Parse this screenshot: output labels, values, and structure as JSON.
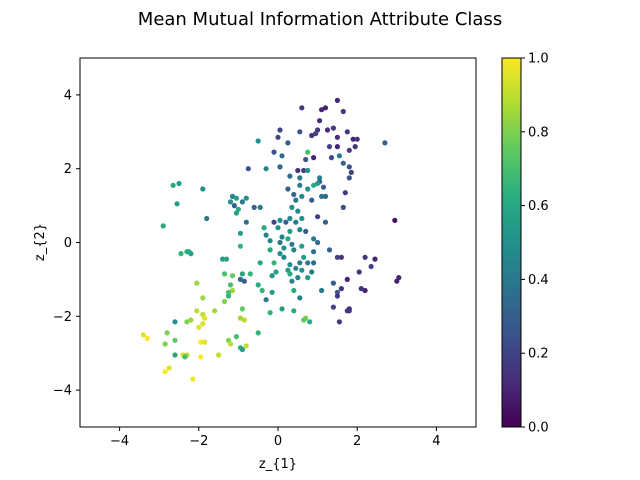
{
  "figure": {
    "title": "Mean Mutual Information Attribute Class"
  },
  "chart_data": {
    "type": "scatter",
    "title": "Mean Mutual Information Attribute Class",
    "xlabel": "z_{1}",
    "ylabel": "z_{2}",
    "xlim": [
      -5,
      5
    ],
    "ylim": [
      -5,
      5
    ],
    "xticks": [
      -4,
      -2,
      0,
      2,
      4
    ],
    "yticks": [
      -4,
      -2,
      0,
      2,
      4
    ],
    "grid": false,
    "colormap": "viridis",
    "colorbar": {
      "min": 0.0,
      "max": 1.0,
      "ticks": [
        0.0,
        0.2,
        0.4,
        0.6,
        0.8,
        1.0
      ]
    },
    "points": [
      {
        "x": 1.5,
        "y": 3.85,
        "c": 0.1
      },
      {
        "x": 1.2,
        "y": 3.65,
        "c": 0.1
      },
      {
        "x": 0.6,
        "y": 3.65,
        "c": 0.15
      },
      {
        "x": 1.1,
        "y": 3.6,
        "c": 0.1
      },
      {
        "x": 1.65,
        "y": 3.55,
        "c": 0.15
      },
      {
        "x": 1.05,
        "y": 3.3,
        "c": 0.12
      },
      {
        "x": 1.4,
        "y": 3.1,
        "c": 0.18
      },
      {
        "x": 1.0,
        "y": 3.05,
        "c": 0.15
      },
      {
        "x": 0.95,
        "y": 2.95,
        "c": 0.2
      },
      {
        "x": 1.25,
        "y": 3.05,
        "c": 0.12
      },
      {
        "x": 0.05,
        "y": 3.05,
        "c": 0.2
      },
      {
        "x": 0.55,
        "y": 3.0,
        "c": 0.25
      },
      {
        "x": 0.85,
        "y": 2.9,
        "c": 0.15
      },
      {
        "x": 1.5,
        "y": 2.85,
        "c": 0.12
      },
      {
        "x": 1.75,
        "y": 3.0,
        "c": 0.15
      },
      {
        "x": 1.9,
        "y": 2.8,
        "c": 0.1
      },
      {
        "x": 2.0,
        "y": 2.8,
        "c": 0.15
      },
      {
        "x": 0.0,
        "y": 2.85,
        "c": 0.22
      },
      {
        "x": -0.5,
        "y": 2.75,
        "c": 0.5
      },
      {
        "x": 0.25,
        "y": 2.7,
        "c": 0.3
      },
      {
        "x": 2.7,
        "y": 2.7,
        "c": 0.3
      },
      {
        "x": 1.3,
        "y": 2.6,
        "c": 0.2
      },
      {
        "x": 1.5,
        "y": 2.6,
        "c": 0.1
      },
      {
        "x": 1.95,
        "y": 2.6,
        "c": 0.15
      },
      {
        "x": -0.1,
        "y": 2.45,
        "c": 0.25
      },
      {
        "x": 0.75,
        "y": 2.45,
        "c": 0.7
      },
      {
        "x": 1.8,
        "y": 2.5,
        "c": 0.18
      },
      {
        "x": 0.1,
        "y": 2.35,
        "c": 0.35
      },
      {
        "x": 1.55,
        "y": 2.35,
        "c": 0.4
      },
      {
        "x": 0.9,
        "y": 2.3,
        "c": 0.1
      },
      {
        "x": 1.35,
        "y": 2.3,
        "c": 0.22
      },
      {
        "x": 0.7,
        "y": 2.25,
        "c": 0.25
      },
      {
        "x": 1.65,
        "y": 2.15,
        "c": 0.3
      },
      {
        "x": 0.05,
        "y": 2.05,
        "c": 0.3
      },
      {
        "x": 1.8,
        "y": 2.05,
        "c": 0.25
      },
      {
        "x": -0.75,
        "y": 2.0,
        "c": 0.25
      },
      {
        "x": -0.3,
        "y": 2.0,
        "c": 0.45
      },
      {
        "x": 0.5,
        "y": 1.95,
        "c": 0.15
      },
      {
        "x": 0.65,
        "y": 1.95,
        "c": 0.18
      },
      {
        "x": 0.75,
        "y": 1.95,
        "c": 0.5
      },
      {
        "x": 1.85,
        "y": 1.9,
        "c": 0.2
      },
      {
        "x": 0.3,
        "y": 1.8,
        "c": 0.35
      },
      {
        "x": 1.8,
        "y": 1.75,
        "c": 0.25
      },
      {
        "x": 0.55,
        "y": 1.75,
        "c": 0.4
      },
      {
        "x": 1.05,
        "y": 1.75,
        "c": 0.45
      },
      {
        "x": 1.05,
        "y": 1.65,
        "c": 0.3
      },
      {
        "x": 1.0,
        "y": 1.6,
        "c": 0.55
      },
      {
        "x": 0.9,
        "y": 1.55,
        "c": 0.62
      },
      {
        "x": 1.15,
        "y": 1.5,
        "c": 0.3
      },
      {
        "x": 0.55,
        "y": 1.55,
        "c": 0.4
      },
      {
        "x": -2.65,
        "y": 1.55,
        "c": 0.6
      },
      {
        "x": -2.5,
        "y": 1.6,
        "c": 0.55
      },
      {
        "x": -1.9,
        "y": 1.45,
        "c": 0.5
      },
      {
        "x": 0.25,
        "y": 1.45,
        "c": 0.3
      },
      {
        "x": 0.75,
        "y": 1.45,
        "c": 0.5
      },
      {
        "x": 1.7,
        "y": 1.35,
        "c": 0.15
      },
      {
        "x": 0.4,
        "y": 1.3,
        "c": 0.35
      },
      {
        "x": 0.6,
        "y": 1.25,
        "c": 0.45
      },
      {
        "x": 1.1,
        "y": 1.25,
        "c": 0.4
      },
      {
        "x": 1.2,
        "y": 1.25,
        "c": 0.35
      },
      {
        "x": -1.15,
        "y": 1.25,
        "c": 0.45
      },
      {
        "x": -1.05,
        "y": 1.2,
        "c": 0.55
      },
      {
        "x": -0.8,
        "y": 1.2,
        "c": 0.48
      },
      {
        "x": 0.45,
        "y": 1.15,
        "c": 0.4
      },
      {
        "x": 0.85,
        "y": 1.15,
        "c": 0.3
      },
      {
        "x": -1.2,
        "y": 1.1,
        "c": 0.5
      },
      {
        "x": -0.9,
        "y": 1.1,
        "c": 0.4
      },
      {
        "x": -1.1,
        "y": 1.0,
        "c": 0.3
      },
      {
        "x": -0.45,
        "y": 0.95,
        "c": 0.4
      },
      {
        "x": -0.6,
        "y": 0.95,
        "c": 0.3
      },
      {
        "x": 0.35,
        "y": 0.95,
        "c": 0.5
      },
      {
        "x": -1.0,
        "y": 0.9,
        "c": 0.6
      },
      {
        "x": -1.05,
        "y": 0.8,
        "c": 0.55
      },
      {
        "x": 1.65,
        "y": 0.95,
        "c": 0.25
      },
      {
        "x": 0.5,
        "y": 0.85,
        "c": 0.45
      },
      {
        "x": -2.55,
        "y": 1.05,
        "c": 0.55
      },
      {
        "x": -1.8,
        "y": 0.65,
        "c": 0.4
      },
      {
        "x": 0.6,
        "y": 0.65,
        "c": 0.5
      },
      {
        "x": 1.0,
        "y": 0.7,
        "c": 0.2
      },
      {
        "x": 0.3,
        "y": 0.65,
        "c": 0.45
      },
      {
        "x": 0.45,
        "y": 0.55,
        "c": 0.4
      },
      {
        "x": 0.05,
        "y": 0.6,
        "c": 0.5
      },
      {
        "x": -0.1,
        "y": 0.55,
        "c": 0.2
      },
      {
        "x": 0.2,
        "y": 0.55,
        "c": 0.3
      },
      {
        "x": 1.2,
        "y": 0.55,
        "c": 0.3
      },
      {
        "x": -0.8,
        "y": 0.55,
        "c": 0.35
      },
      {
        "x": 2.95,
        "y": 0.6,
        "c": 0.05
      },
      {
        "x": -2.9,
        "y": 0.45,
        "c": 0.6
      },
      {
        "x": -0.35,
        "y": 0.4,
        "c": 0.6
      },
      {
        "x": 0.0,
        "y": 0.4,
        "c": 0.5
      },
      {
        "x": 0.55,
        "y": 0.35,
        "c": 0.45
      },
      {
        "x": 0.3,
        "y": 0.3,
        "c": 0.55
      },
      {
        "x": 0.7,
        "y": 0.3,
        "c": 0.3
      },
      {
        "x": -0.95,
        "y": 0.25,
        "c": 0.55
      },
      {
        "x": -0.3,
        "y": 0.2,
        "c": 0.45
      },
      {
        "x": 0.1,
        "y": 0.15,
        "c": 0.45
      },
      {
        "x": 0.25,
        "y": 0.1,
        "c": 0.6
      },
      {
        "x": 0.9,
        "y": 0.1,
        "c": 0.4
      },
      {
        "x": -0.2,
        "y": 0.05,
        "c": 0.45
      },
      {
        "x": 0.05,
        "y": 0.0,
        "c": 0.4
      },
      {
        "x": 1.0,
        "y": 0.0,
        "c": 0.35
      },
      {
        "x": -0.95,
        "y": -0.1,
        "c": 0.65
      },
      {
        "x": 0.35,
        "y": -0.05,
        "c": 0.4
      },
      {
        "x": 0.6,
        "y": -0.1,
        "c": 0.55
      },
      {
        "x": 0.15,
        "y": -0.15,
        "c": 0.5
      },
      {
        "x": -0.2,
        "y": -0.2,
        "c": 0.6
      },
      {
        "x": 0.4,
        "y": -0.2,
        "c": 0.45
      },
      {
        "x": 1.3,
        "y": -0.2,
        "c": 0.3
      },
      {
        "x": 0.9,
        "y": -0.25,
        "c": 0.35
      },
      {
        "x": -2.3,
        "y": -0.25,
        "c": 0.62
      },
      {
        "x": -2.2,
        "y": -0.3,
        "c": 0.55
      },
      {
        "x": -2.45,
        "y": -0.3,
        "c": 0.65
      },
      {
        "x": -2.25,
        "y": -0.25,
        "c": 0.6
      },
      {
        "x": 0.05,
        "y": -0.3,
        "c": 0.5
      },
      {
        "x": 0.15,
        "y": -0.4,
        "c": 0.45
      },
      {
        "x": 0.65,
        "y": -0.4,
        "c": 0.55
      },
      {
        "x": 1.5,
        "y": -0.4,
        "c": 0.2
      },
      {
        "x": 1.6,
        "y": -0.4,
        "c": 0.15
      },
      {
        "x": 2.2,
        "y": -0.4,
        "c": 0.15
      },
      {
        "x": 2.45,
        "y": -0.45,
        "c": 0.1
      },
      {
        "x": -1.4,
        "y": -0.45,
        "c": 0.55
      },
      {
        "x": -1.3,
        "y": -0.45,
        "c": 0.58
      },
      {
        "x": -0.1,
        "y": -0.55,
        "c": 0.65
      },
      {
        "x": 0.3,
        "y": -0.6,
        "c": 0.5
      },
      {
        "x": 0.55,
        "y": -0.55,
        "c": 0.42
      },
      {
        "x": 0.75,
        "y": -0.55,
        "c": 0.4
      },
      {
        "x": 0.9,
        "y": -0.55,
        "c": 0.35
      },
      {
        "x": -0.45,
        "y": -0.55,
        "c": 0.6
      },
      {
        "x": 2.35,
        "y": -0.65,
        "c": 0.2
      },
      {
        "x": 0.45,
        "y": -0.7,
        "c": 0.45
      },
      {
        "x": 0.25,
        "y": -0.75,
        "c": 0.55
      },
      {
        "x": 0.6,
        "y": -0.75,
        "c": 0.5
      },
      {
        "x": 0.85,
        "y": -0.8,
        "c": 0.42
      },
      {
        "x": -0.05,
        "y": -0.8,
        "c": 0.58
      },
      {
        "x": 0.3,
        "y": -0.85,
        "c": 0.6
      },
      {
        "x": 2.05,
        "y": -0.8,
        "c": 0.15
      },
      {
        "x": -1.35,
        "y": -0.85,
        "c": 0.7
      },
      {
        "x": -1.15,
        "y": -0.9,
        "c": 0.75
      },
      {
        "x": -0.9,
        "y": -0.85,
        "c": 0.6
      },
      {
        "x": -0.7,
        "y": -0.85,
        "c": 0.65
      },
      {
        "x": -0.15,
        "y": -0.9,
        "c": 0.5
      },
      {
        "x": 0.5,
        "y": -0.95,
        "c": 0.45
      },
      {
        "x": 0.75,
        "y": -0.95,
        "c": 0.55
      },
      {
        "x": 1.75,
        "y": -1.0,
        "c": 0.1
      },
      {
        "x": 3.05,
        "y": -0.95,
        "c": 0.1
      },
      {
        "x": 3.0,
        "y": -1.05,
        "c": 0.1
      },
      {
        "x": -0.95,
        "y": -1.0,
        "c": 0.35
      },
      {
        "x": -0.85,
        "y": -1.05,
        "c": 0.3
      },
      {
        "x": 0.35,
        "y": -1.05,
        "c": 0.45
      },
      {
        "x": -1.2,
        "y": -1.15,
        "c": 0.7
      },
      {
        "x": 1.4,
        "y": -1.1,
        "c": 0.3
      },
      {
        "x": -2.05,
        "y": -1.1,
        "c": 0.85
      },
      {
        "x": -0.5,
        "y": -1.15,
        "c": 0.6
      },
      {
        "x": 2.1,
        "y": -1.25,
        "c": 0.15
      },
      {
        "x": 2.2,
        "y": -1.3,
        "c": 0.1
      },
      {
        "x": 1.6,
        "y": -1.25,
        "c": 0.15
      },
      {
        "x": 1.5,
        "y": -1.35,
        "c": 0.25
      },
      {
        "x": 1.1,
        "y": -1.3,
        "c": 0.4
      },
      {
        "x": -1.15,
        "y": -1.3,
        "c": 0.85
      },
      {
        "x": -1.25,
        "y": -1.35,
        "c": 0.7
      },
      {
        "x": -0.4,
        "y": -1.3,
        "c": 0.65
      },
      {
        "x": 0.4,
        "y": -1.3,
        "c": 0.6
      },
      {
        "x": -0.15,
        "y": -1.35,
        "c": 0.55
      },
      {
        "x": 1.5,
        "y": -1.45,
        "c": 0.15
      },
      {
        "x": -1.25,
        "y": -1.45,
        "c": 0.65
      },
      {
        "x": -1.9,
        "y": -1.5,
        "c": 0.85
      },
      {
        "x": -0.3,
        "y": -1.55,
        "c": 0.4
      },
      {
        "x": 0.55,
        "y": -1.5,
        "c": 0.45
      },
      {
        "x": -1.35,
        "y": -1.6,
        "c": 0.8
      },
      {
        "x": 1.4,
        "y": -1.75,
        "c": 0.2
      },
      {
        "x": 1.8,
        "y": -1.8,
        "c": 0.1
      },
      {
        "x": 1.8,
        "y": -1.85,
        "c": 0.2
      },
      {
        "x": -2.05,
        "y": -1.85,
        "c": 0.9
      },
      {
        "x": -1.6,
        "y": -1.85,
        "c": 0.85
      },
      {
        "x": -0.9,
        "y": -1.8,
        "c": 0.75
      },
      {
        "x": 0.1,
        "y": -1.8,
        "c": 0.55
      },
      {
        "x": 1.75,
        "y": -1.85,
        "c": 0.15
      },
      {
        "x": -0.2,
        "y": -1.9,
        "c": 0.65
      },
      {
        "x": 0.4,
        "y": -1.85,
        "c": 0.6
      },
      {
        "x": -1.9,
        "y": -1.95,
        "c": 0.9
      },
      {
        "x": -1.85,
        "y": -2.05,
        "c": 0.95
      },
      {
        "x": -0.95,
        "y": -2.05,
        "c": 0.85
      },
      {
        "x": 0.7,
        "y": -2.05,
        "c": 0.8
      },
      {
        "x": 1.55,
        "y": -2.15,
        "c": 0.15
      },
      {
        "x": 0.65,
        "y": -2.1,
        "c": 0.75
      },
      {
        "x": -2.6,
        "y": -2.15,
        "c": 0.5
      },
      {
        "x": -2.3,
        "y": -2.15,
        "c": 0.8
      },
      {
        "x": -0.85,
        "y": -2.1,
        "c": 0.9
      },
      {
        "x": -2.2,
        "y": -2.1,
        "c": 0.85
      },
      {
        "x": 0.8,
        "y": -2.15,
        "c": 0.6
      },
      {
        "x": -1.9,
        "y": -2.2,
        "c": 0.95
      },
      {
        "x": -2.0,
        "y": -2.3,
        "c": 0.95
      },
      {
        "x": -0.5,
        "y": -2.45,
        "c": 0.65
      },
      {
        "x": -2.8,
        "y": -2.45,
        "c": 0.8
      },
      {
        "x": -3.4,
        "y": -2.5,
        "c": 0.95
      },
      {
        "x": -1.05,
        "y": -2.55,
        "c": 0.7
      },
      {
        "x": -3.3,
        "y": -2.6,
        "c": 1.0
      },
      {
        "x": -1.25,
        "y": -2.65,
        "c": 0.8
      },
      {
        "x": -2.6,
        "y": -2.65,
        "c": 0.75
      },
      {
        "x": -1.85,
        "y": -2.7,
        "c": 0.95
      },
      {
        "x": -1.95,
        "y": -2.7,
        "c": 1.0
      },
      {
        "x": -1.2,
        "y": -2.75,
        "c": 0.9
      },
      {
        "x": -2.85,
        "y": -2.75,
        "c": 0.8
      },
      {
        "x": -0.8,
        "y": -2.8,
        "c": 0.9
      },
      {
        "x": -0.95,
        "y": -2.85,
        "c": 0.65
      },
      {
        "x": -0.9,
        "y": -2.9,
        "c": 0.55
      },
      {
        "x": -2.3,
        "y": -3.05,
        "c": 0.9
      },
      {
        "x": -2.6,
        "y": -3.05,
        "c": 0.6
      },
      {
        "x": -2.4,
        "y": -3.05,
        "c": 0.95
      },
      {
        "x": -1.95,
        "y": -3.1,
        "c": 1.0
      },
      {
        "x": -2.35,
        "y": -3.1,
        "c": 0.7
      },
      {
        "x": -1.5,
        "y": -3.05,
        "c": 0.9
      },
      {
        "x": -2.75,
        "y": -3.4,
        "c": 0.95
      },
      {
        "x": -2.85,
        "y": -3.5,
        "c": 1.0
      },
      {
        "x": -2.15,
        "y": -3.7,
        "c": 0.98
      }
    ]
  }
}
